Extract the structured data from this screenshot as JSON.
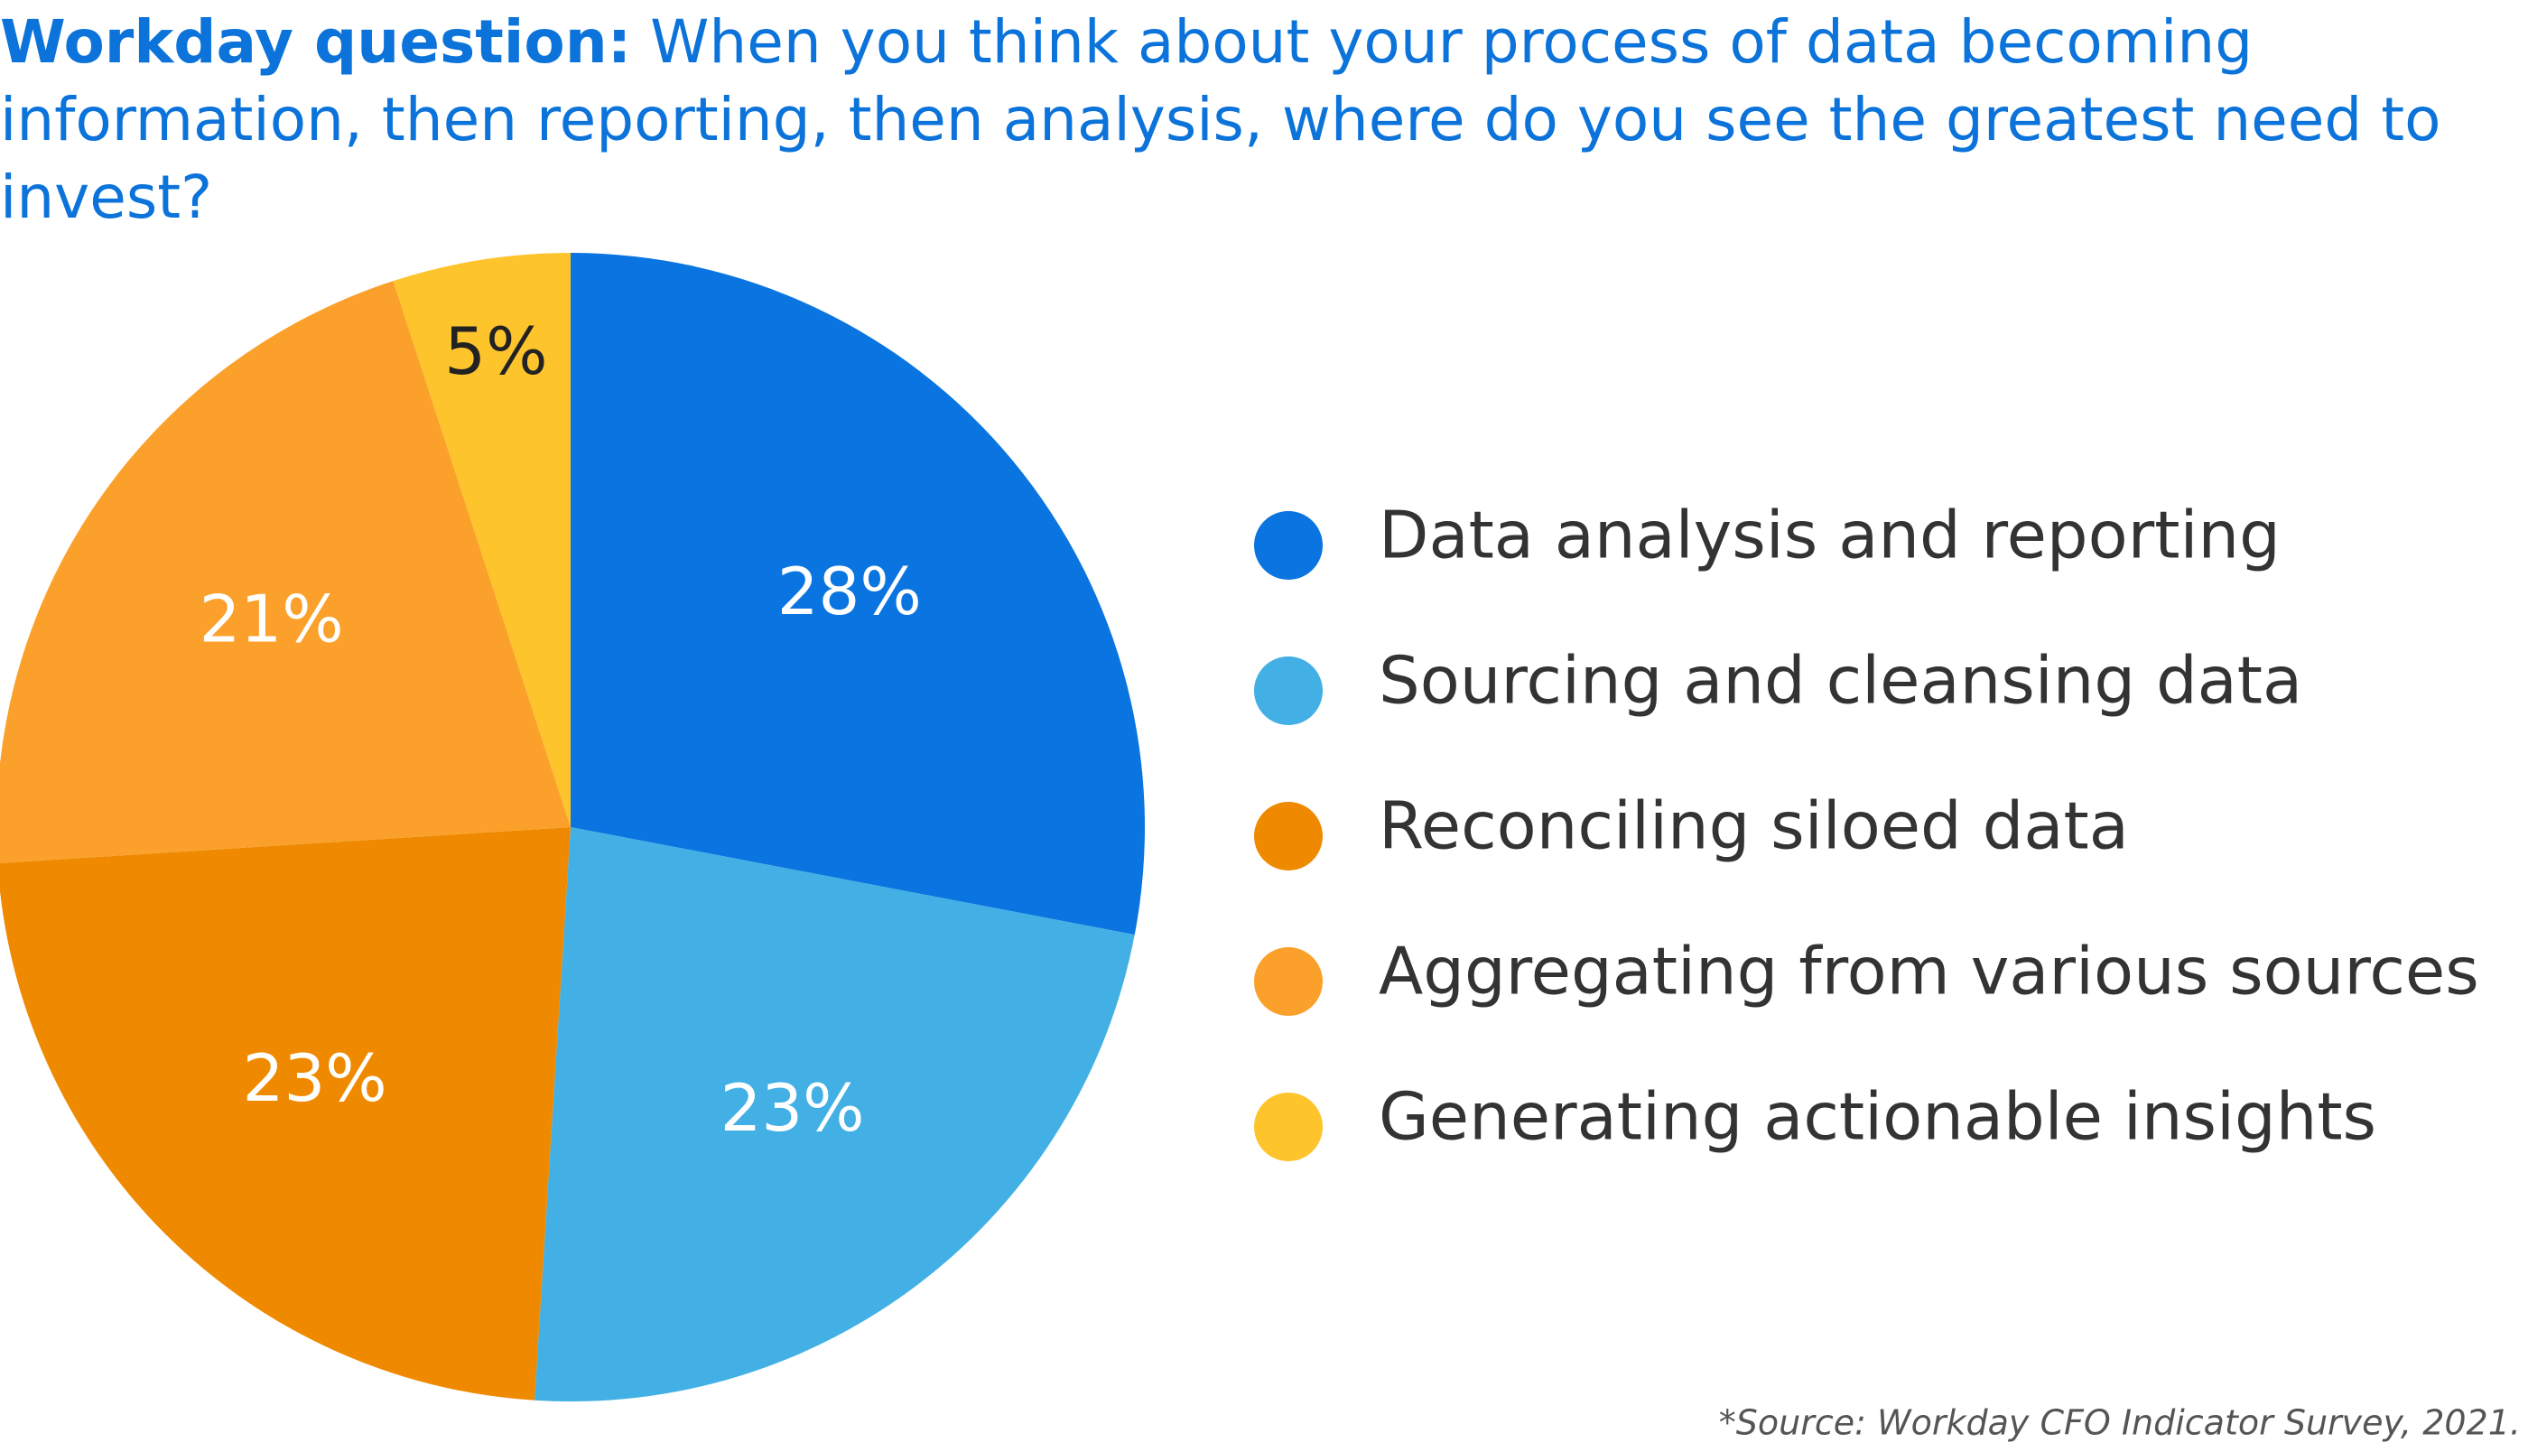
{
  "chart_data": {
    "type": "pie",
    "title_lead": "Workday question:",
    "title": "When you think about your process of data becoming information, then reporting, then analysis, where do you see the greatest need to invest?",
    "categories": [
      "Data analysis and reporting",
      "Sourcing and cleansing data",
      "Reconciling siloed data",
      "Aggregating from various sources",
      "Generating actionable insights"
    ],
    "values": [
      28,
      23,
      23,
      21,
      5
    ],
    "value_labels": [
      "28%",
      "23%",
      "23%",
      "21%",
      "5%"
    ],
    "colors": [
      "#0a75e0",
      "#42b0e4",
      "#ef8a00",
      "#fba02a",
      "#fec42c"
    ],
    "value_label_colors": [
      "#ffffff",
      "#ffffff",
      "#ffffff",
      "#ffffff",
      "#222222"
    ],
    "legend": "right",
    "source": "*Source: Workday CFO Indicator Survey, 2021."
  }
}
